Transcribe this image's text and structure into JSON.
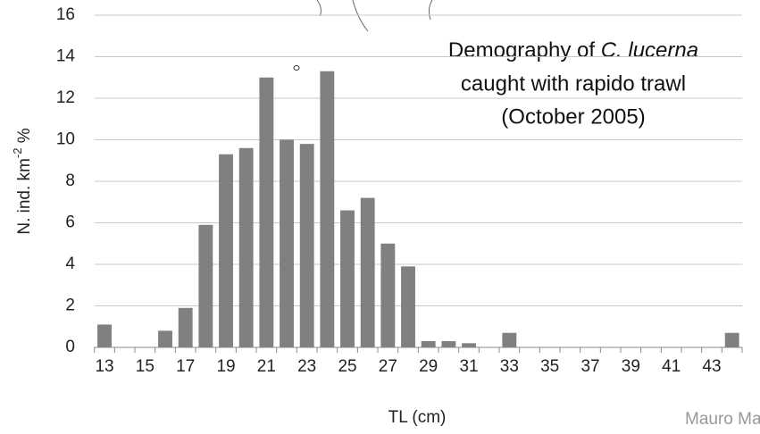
{
  "chart_data": {
    "type": "bar",
    "annotation": [
      "Demography of ",
      "C. lucerna",
      "caught with rapido trawl",
      "(October 2005)"
    ],
    "ylabel": [
      "N. ind. km",
      "-2",
      " %"
    ],
    "xlabel": "TL (cm)",
    "credit": "Mauro Mar",
    "categories": [
      "13",
      null,
      "15",
      null,
      "17",
      null,
      "19",
      null,
      "21",
      null,
      "23",
      null,
      "25",
      null,
      "27",
      null,
      "29",
      null,
      "31",
      null,
      "33",
      null,
      "35",
      null,
      "37",
      null,
      "39",
      null,
      "41",
      null,
      "43",
      null
    ],
    "values": [
      1.1,
      0,
      0,
      0.8,
      1.9,
      5.9,
      9.3,
      9.6,
      13.0,
      10.0,
      9.8,
      13.3,
      6.6,
      7.2,
      5.0,
      3.9,
      0.3,
      0.3,
      0.2,
      0,
      0.7,
      0,
      0,
      0,
      0,
      0,
      0,
      0,
      0,
      0,
      0,
      0.7
    ],
    "color": "#808080",
    "ylim": [
      0,
      16
    ],
    "yticks": [
      0,
      2,
      4,
      6,
      8,
      10,
      12,
      14,
      16
    ],
    "grid": true
  }
}
